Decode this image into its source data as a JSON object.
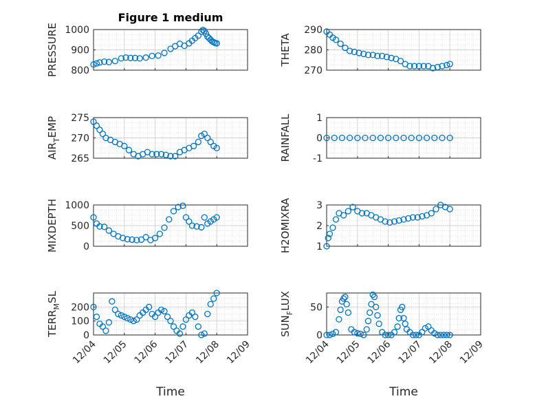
{
  "chart_data": {
    "type": "scatter",
    "title": "Figure 1 medium",
    "marker_color": "#0072BD",
    "x_ticks": [
      "12/04",
      "12/05",
      "12/06",
      "12/07",
      "12/08",
      "12/09"
    ],
    "panels": [
      {
        "id": "pressure",
        "ylabel": "PRESSURE",
        "ylabel_sub": "",
        "ylabel_tail": "",
        "ylim": [
          800,
          1000
        ],
        "yticks": [
          800,
          900,
          1000
        ],
        "x": [
          0.0,
          0.1,
          0.2,
          0.35,
          0.5,
          0.7,
          0.9,
          1.05,
          1.2,
          1.35,
          1.5,
          1.7,
          1.9,
          2.1,
          2.3,
          2.5,
          2.65,
          2.8,
          2.95,
          3.1,
          3.2,
          3.3,
          3.4,
          3.5,
          3.55,
          3.6,
          3.65,
          3.7,
          3.75,
          3.8,
          3.85,
          3.9,
          3.95,
          4.0
        ],
        "y": [
          828,
          833,
          838,
          842,
          840,
          845,
          858,
          862,
          860,
          860,
          858,
          862,
          870,
          872,
          885,
          905,
          918,
          930,
          920,
          932,
          945,
          958,
          970,
          990,
          998,
          993,
          980,
          965,
          958,
          950,
          942,
          938,
          934,
          932
        ]
      },
      {
        "id": "theta",
        "ylabel": "THETA",
        "ylabel_sub": "",
        "ylabel_tail": "",
        "ylim": [
          270,
          290
        ],
        "yticks": [
          270,
          280,
          290
        ],
        "x": [
          0.0,
          0.1,
          0.2,
          0.3,
          0.45,
          0.6,
          0.75,
          0.9,
          1.05,
          1.2,
          1.35,
          1.5,
          1.65,
          1.8,
          1.95,
          2.1,
          2.25,
          2.4,
          2.55,
          2.7,
          2.85,
          3.0,
          3.15,
          3.3,
          3.45,
          3.6,
          3.75,
          3.9,
          4.0
        ],
        "y": [
          289,
          287.5,
          286,
          285,
          283,
          281,
          279.5,
          279,
          278.5,
          278,
          277.5,
          277.5,
          277,
          277,
          276.5,
          276,
          275.5,
          274.5,
          273,
          272,
          272,
          272,
          272,
          272,
          271,
          271.5,
          272,
          272.5,
          273
        ]
      },
      {
        "id": "air_temp",
        "ylabel": "AIR",
        "ylabel_sub": "T",
        "ylabel_tail": "EMP",
        "ylim": [
          265,
          275
        ],
        "yticks": [
          265,
          270,
          275
        ],
        "x": [
          0.0,
          0.1,
          0.2,
          0.3,
          0.4,
          0.55,
          0.7,
          0.85,
          1.0,
          1.15,
          1.3,
          1.45,
          1.6,
          1.75,
          1.9,
          2.05,
          2.2,
          2.35,
          2.5,
          2.65,
          2.8,
          2.95,
          3.1,
          3.25,
          3.4,
          3.5,
          3.6,
          3.7,
          3.8,
          3.9,
          4.0
        ],
        "y": [
          274,
          273,
          272,
          271,
          270,
          269.5,
          269,
          268.5,
          268,
          267,
          266,
          265.5,
          266,
          266.5,
          266,
          266,
          266,
          265.8,
          265.5,
          265.5,
          266.5,
          267,
          267.5,
          268,
          269,
          270.5,
          271,
          270,
          269,
          268,
          267.5
        ]
      },
      {
        "id": "rainfall",
        "ylabel": "RAINFALL",
        "ylabel_sub": "",
        "ylabel_tail": "",
        "ylim": [
          -1,
          1
        ],
        "yticks": [
          -1,
          0,
          1
        ],
        "x": [
          0.0,
          0.25,
          0.5,
          0.75,
          1.0,
          1.25,
          1.5,
          1.75,
          2.0,
          2.25,
          2.5,
          2.75,
          3.0,
          3.25,
          3.5,
          3.75,
          4.0
        ],
        "y": [
          0,
          0,
          0,
          0,
          0,
          0,
          0,
          0,
          0,
          0,
          0,
          0,
          0,
          0,
          0,
          0,
          0
        ]
      },
      {
        "id": "mixdepth",
        "ylabel": "MIXDEPTH",
        "ylabel_sub": "",
        "ylabel_tail": "",
        "ylim": [
          0,
          1000
        ],
        "yticks": [
          0,
          500,
          1000
        ],
        "x": [
          0.0,
          0.1,
          0.2,
          0.35,
          0.5,
          0.65,
          0.8,
          0.95,
          1.1,
          1.25,
          1.4,
          1.55,
          1.7,
          1.85,
          2.0,
          2.15,
          2.3,
          2.45,
          2.6,
          2.75,
          2.9,
          3.0,
          3.1,
          3.2,
          3.35,
          3.5,
          3.6,
          3.7,
          3.8,
          3.9,
          4.0
        ],
        "y": [
          700,
          550,
          480,
          470,
          380,
          300,
          240,
          200,
          170,
          160,
          150,
          160,
          220,
          150,
          200,
          300,
          450,
          650,
          850,
          950,
          980,
          700,
          600,
          500,
          480,
          460,
          700,
          550,
          600,
          650,
          700
        ]
      },
      {
        "id": "h2omixra",
        "ylabel": "H2OMIXRA",
        "ylabel_sub": "",
        "ylabel_tail": "",
        "ylim": [
          1,
          3
        ],
        "yticks": [
          1,
          2,
          3
        ],
        "x": [
          0.0,
          0.05,
          0.1,
          0.2,
          0.3,
          0.4,
          0.55,
          0.7,
          0.85,
          1.0,
          1.15,
          1.3,
          1.45,
          1.6,
          1.75,
          1.9,
          2.05,
          2.2,
          2.35,
          2.5,
          2.65,
          2.8,
          2.95,
          3.1,
          3.25,
          3.4,
          3.55,
          3.7,
          3.85,
          4.0
        ],
        "y": [
          1.0,
          1.4,
          1.6,
          1.9,
          2.3,
          2.6,
          2.5,
          2.7,
          2.9,
          2.7,
          2.6,
          2.6,
          2.5,
          2.4,
          2.3,
          2.2,
          2.15,
          2.2,
          2.25,
          2.3,
          2.35,
          2.4,
          2.4,
          2.45,
          2.5,
          2.6,
          2.8,
          3.0,
          2.9,
          2.8
        ]
      },
      {
        "id": "terr_msl",
        "ylabel": "TERR",
        "ylabel_sub": "M",
        "ylabel_tail": "SL",
        "ylim": [
          0,
          300
        ],
        "yticks": [
          0,
          100,
          200
        ],
        "x": [
          0.0,
          0.1,
          0.2,
          0.3,
          0.4,
          0.5,
          0.6,
          0.7,
          0.8,
          0.9,
          1.0,
          1.1,
          1.2,
          1.3,
          1.4,
          1.5,
          1.6,
          1.7,
          1.8,
          1.9,
          2.0,
          2.1,
          2.2,
          2.3,
          2.4,
          2.5,
          2.6,
          2.7,
          2.8,
          2.9,
          3.0,
          3.1,
          3.2,
          3.3,
          3.4,
          3.5,
          3.6,
          3.7,
          3.8,
          3.9,
          4.0
        ],
        "y": [
          200,
          130,
          80,
          60,
          30,
          90,
          240,
          180,
          150,
          140,
          130,
          120,
          110,
          100,
          110,
          140,
          160,
          180,
          200,
          150,
          130,
          160,
          180,
          170,
          130,
          100,
          60,
          30,
          10,
          60,
          110,
          140,
          160,
          130,
          60,
          0,
          10,
          150,
          220,
          260,
          300
        ]
      },
      {
        "id": "sun_flux",
        "ylabel": "SUN",
        "ylabel_sub": "F",
        "ylabel_tail": "LUX",
        "ylim": [
          0,
          75
        ],
        "yticks": [
          0,
          50
        ],
        "x": [
          0.0,
          0.1,
          0.2,
          0.3,
          0.4,
          0.45,
          0.5,
          0.55,
          0.6,
          0.65,
          0.7,
          0.8,
          0.9,
          1.0,
          1.1,
          1.2,
          1.3,
          1.35,
          1.4,
          1.45,
          1.5,
          1.55,
          1.6,
          1.65,
          1.7,
          1.8,
          1.9,
          2.0,
          2.1,
          2.2,
          2.3,
          2.35,
          2.4,
          2.45,
          2.5,
          2.55,
          2.6,
          2.7,
          2.8,
          2.9,
          3.0,
          3.1,
          3.2,
          3.3,
          3.4,
          3.5,
          3.6,
          3.7,
          3.8,
          3.9,
          4.0
        ],
        "y": [
          0,
          0,
          2,
          5,
          28,
          45,
          60,
          65,
          68,
          55,
          40,
          10,
          5,
          3,
          2,
          0,
          10,
          25,
          40,
          55,
          72,
          68,
          50,
          35,
          20,
          5,
          0,
          0,
          0,
          5,
          15,
          30,
          45,
          50,
          30,
          20,
          10,
          5,
          0,
          0,
          0,
          5,
          12,
          15,
          8,
          3,
          0,
          0,
          0,
          0,
          0
        ]
      }
    ],
    "xlabel": "Time"
  }
}
